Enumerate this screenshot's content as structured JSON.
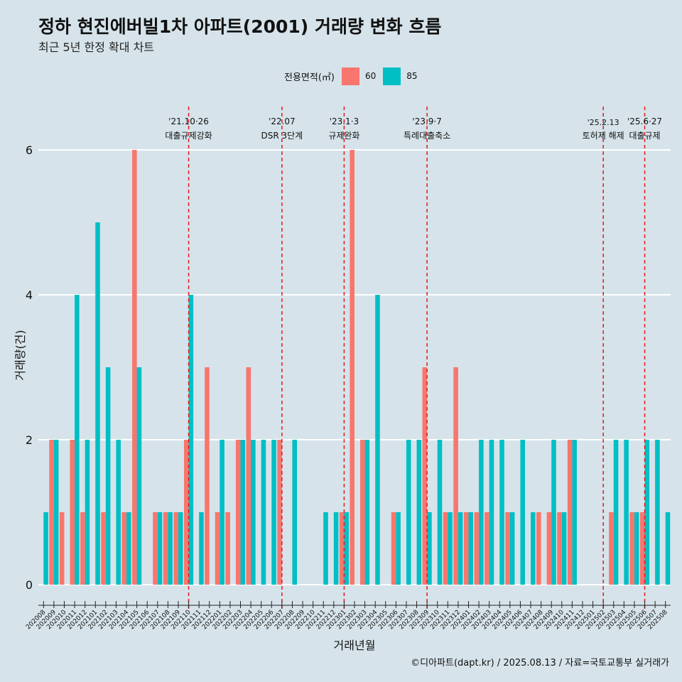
{
  "title": "정하 현진에버빌1차 아파트(2001) 거래량 변화 흐름",
  "subtitle": "최근 5년 한정 확대 차트",
  "caption": "©디아파트(dapt.kr) / 2025.08.13 / 자료=국토교통부 실거래가",
  "legend": {
    "title": "전용면적(㎡)",
    "items": [
      {
        "label": "60",
        "color": "#f8766d"
      },
      {
        "label": "85",
        "color": "#00bfc4"
      }
    ]
  },
  "colors": {
    "background": "#d6e3ea",
    "grid": "#ffffff",
    "event_line": "#e31a1c"
  },
  "chart_data": {
    "type": "bar",
    "xlabel": "거래년월",
    "ylabel": "거래량(건)",
    "ylim": [
      0,
      6
    ],
    "yticks": [
      0,
      2,
      4,
      6
    ],
    "categories": [
      "202008",
      "202009",
      "202010",
      "202011",
      "202012",
      "202101",
      "202102",
      "202103",
      "202104",
      "202105",
      "202106",
      "202107",
      "202108",
      "202109",
      "202110",
      "202111",
      "202112",
      "202201",
      "202202",
      "202203",
      "202204",
      "202205",
      "202206",
      "202207",
      "202208",
      "202209",
      "202210",
      "202211",
      "202212",
      "202301",
      "202302",
      "202303",
      "202304",
      "202305",
      "202306",
      "202307",
      "202308",
      "202309",
      "202310",
      "202311",
      "202312",
      "202401",
      "202402",
      "202403",
      "202404",
      "202405",
      "202406",
      "202407",
      "202408",
      "202409",
      "202410",
      "202411",
      "202412",
      "202501",
      "202502",
      "202503",
      "202504",
      "202505",
      "202506",
      "202507",
      "202508"
    ],
    "series": [
      {
        "name": "60",
        "values": [
          0,
          2,
          1,
          2,
          1,
          0,
          1,
          0,
          1,
          6,
          0,
          1,
          1,
          1,
          2,
          0,
          3,
          1,
          1,
          2,
          3,
          0,
          0,
          2,
          0,
          0,
          0,
          0,
          0,
          1,
          6,
          2,
          0,
          0,
          1,
          0,
          0,
          3,
          0,
          1,
          3,
          1,
          1,
          1,
          0,
          1,
          0,
          0,
          1,
          1,
          1,
          2,
          0,
          0,
          0,
          1,
          0,
          1,
          1,
          0,
          0
        ]
      },
      {
        "name": "85",
        "values": [
          1,
          2,
          0,
          4,
          2,
          5,
          3,
          2,
          1,
          3,
          0,
          1,
          1,
          1,
          4,
          1,
          0,
          2,
          0,
          2,
          2,
          2,
          2,
          0,
          2,
          0,
          0,
          1,
          1,
          1,
          0,
          2,
          4,
          0,
          1,
          2,
          2,
          1,
          2,
          1,
          1,
          1,
          2,
          2,
          2,
          1,
          2,
          1,
          0,
          2,
          1,
          2,
          0,
          0,
          0,
          2,
          2,
          1,
          2,
          2,
          1
        ]
      }
    ],
    "events": [
      {
        "month": "202110",
        "date": "'21.10·26",
        "label": "대출규제강화"
      },
      {
        "month": "202207",
        "date": "'22.07",
        "label": "DSR 3단계"
      },
      {
        "month": "202301",
        "date": "'23.1·3",
        "label": "규제완화"
      },
      {
        "month": "202309",
        "date": "'23.9·7",
        "label": "특례대출축소"
      },
      {
        "month": "202502",
        "date": "'25.2.13",
        "label": "토허제 해제"
      },
      {
        "month": "202506",
        "date": "'25.6·27",
        "label": "대출규제"
      }
    ]
  }
}
